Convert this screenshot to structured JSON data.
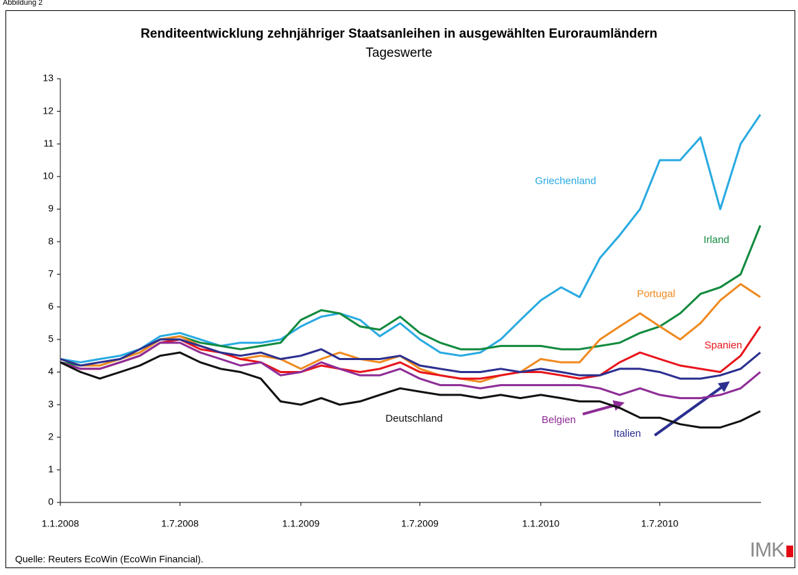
{
  "figure_label": "Abbildung 2",
  "source": "Quelle: Reuters EcoWin (EcoWin Financial).",
  "logo": "IMK",
  "chart_data": {
    "type": "line",
    "title": "Renditeentwicklung zehnjähriger Staatsanleihen in ausgewählten Euroraumländern",
    "subtitle": "Tageswerte",
    "x": [
      "2008-01-01",
      "2008-02-01",
      "2008-03-01",
      "2008-04-01",
      "2008-05-01",
      "2008-06-01",
      "2008-07-01",
      "2008-08-01",
      "2008-09-01",
      "2008-10-01",
      "2008-11-01",
      "2008-12-01",
      "2009-01-01",
      "2009-02-01",
      "2009-03-01",
      "2009-04-01",
      "2009-05-01",
      "2009-06-01",
      "2009-07-01",
      "2009-08-01",
      "2009-09-01",
      "2009-10-01",
      "2009-11-01",
      "2009-12-01",
      "2010-01-01",
      "2010-02-01",
      "2010-03-01",
      "2010-04-01",
      "2010-05-01",
      "2010-06-01",
      "2010-07-01",
      "2010-08-01",
      "2010-09-01",
      "2010-10-01",
      "2010-11-01",
      "2010-12-01"
    ],
    "xlim": [
      "2008-01-01",
      "2010-12-02"
    ],
    "xticks": [
      {
        "value": "2008-01-01",
        "label": "1.1.2008"
      },
      {
        "value": "2008-07-01",
        "label": "1.7.2008"
      },
      {
        "value": "2009-01-01",
        "label": "1.1.2009"
      },
      {
        "value": "2009-07-01",
        "label": "1.7.2009"
      },
      {
        "value": "2010-01-01",
        "label": "1.1.2010"
      },
      {
        "value": "2010-07-01",
        "label": "1.7.2010"
      }
    ],
    "ylim": [
      0,
      13
    ],
    "yticks": [
      0,
      1,
      2,
      3,
      4,
      5,
      6,
      7,
      8,
      9,
      10,
      11,
      12,
      13
    ],
    "series": [
      {
        "name": "Griechenland",
        "color": "#29aae1",
        "values": [
          4.4,
          4.3,
          4.4,
          4.5,
          4.7,
          5.1,
          5.2,
          5.0,
          4.8,
          4.9,
          4.9,
          5.0,
          5.4,
          5.7,
          5.8,
          5.6,
          5.1,
          5.5,
          5.0,
          4.6,
          4.5,
          4.6,
          5.0,
          5.6,
          6.2,
          6.6,
          6.3,
          7.5,
          8.2,
          9.0,
          10.5,
          10.5,
          11.2,
          9.0,
          11.0,
          11.9
        ]
      },
      {
        "name": "Irland",
        "color": "#118a3e",
        "values": [
          4.3,
          4.2,
          4.2,
          4.4,
          4.6,
          5.0,
          5.1,
          4.9,
          4.8,
          4.7,
          4.8,
          4.9,
          5.6,
          5.9,
          5.8,
          5.4,
          5.3,
          5.7,
          5.2,
          4.9,
          4.7,
          4.7,
          4.8,
          4.8,
          4.8,
          4.7,
          4.7,
          4.8,
          4.9,
          5.2,
          5.4,
          5.8,
          6.4,
          6.6,
          7.0,
          8.5
        ]
      },
      {
        "name": "Portugal",
        "color": "#ef8a20",
        "values": [
          4.4,
          4.2,
          4.2,
          4.4,
          4.6,
          5.0,
          5.1,
          4.8,
          4.6,
          4.4,
          4.5,
          4.4,
          4.1,
          4.4,
          4.6,
          4.4,
          4.3,
          4.5,
          4.1,
          3.9,
          3.8,
          3.7,
          3.9,
          4.0,
          4.4,
          4.3,
          4.3,
          5.0,
          5.4,
          5.8,
          5.4,
          5.0,
          5.5,
          6.2,
          6.7,
          6.3
        ]
      },
      {
        "name": "Spanien",
        "color": "#e8141b",
        "values": [
          4.3,
          4.1,
          4.1,
          4.3,
          4.5,
          4.9,
          5.0,
          4.7,
          4.6,
          4.4,
          4.3,
          4.0,
          4.0,
          4.2,
          4.1,
          4.0,
          4.1,
          4.3,
          4.0,
          3.9,
          3.8,
          3.8,
          3.9,
          4.0,
          4.0,
          3.9,
          3.8,
          3.9,
          4.3,
          4.6,
          4.4,
          4.2,
          4.1,
          4.0,
          4.5,
          5.4
        ]
      },
      {
        "name": "Italien",
        "color": "#2b2f8f",
        "values": [
          4.4,
          4.2,
          4.3,
          4.4,
          4.7,
          5.0,
          5.0,
          4.8,
          4.6,
          4.5,
          4.6,
          4.4,
          4.5,
          4.7,
          4.4,
          4.4,
          4.4,
          4.5,
          4.2,
          4.1,
          4.0,
          4.0,
          4.1,
          4.0,
          4.1,
          4.0,
          3.9,
          3.9,
          4.1,
          4.1,
          4.0,
          3.8,
          3.8,
          3.9,
          4.1,
          4.6
        ]
      },
      {
        "name": "Belgien",
        "color": "#8e2c96",
        "values": [
          4.3,
          4.1,
          4.1,
          4.3,
          4.5,
          4.9,
          4.9,
          4.6,
          4.4,
          4.2,
          4.3,
          3.9,
          4.0,
          4.3,
          4.1,
          3.9,
          3.9,
          4.1,
          3.8,
          3.6,
          3.6,
          3.5,
          3.6,
          3.6,
          3.6,
          3.6,
          3.6,
          3.5,
          3.3,
          3.5,
          3.3,
          3.2,
          3.2,
          3.3,
          3.5,
          4.0
        ]
      },
      {
        "name": "Deutschland",
        "color": "#111111",
        "values": [
          4.3,
          4.0,
          3.8,
          4.0,
          4.2,
          4.5,
          4.6,
          4.3,
          4.1,
          4.0,
          3.8,
          3.1,
          3.0,
          3.2,
          3.0,
          3.1,
          3.3,
          3.5,
          3.4,
          3.3,
          3.3,
          3.2,
          3.3,
          3.2,
          3.3,
          3.2,
          3.1,
          3.1,
          2.9,
          2.6,
          2.6,
          2.4,
          2.3,
          2.3,
          2.5,
          2.8
        ]
      }
    ]
  }
}
